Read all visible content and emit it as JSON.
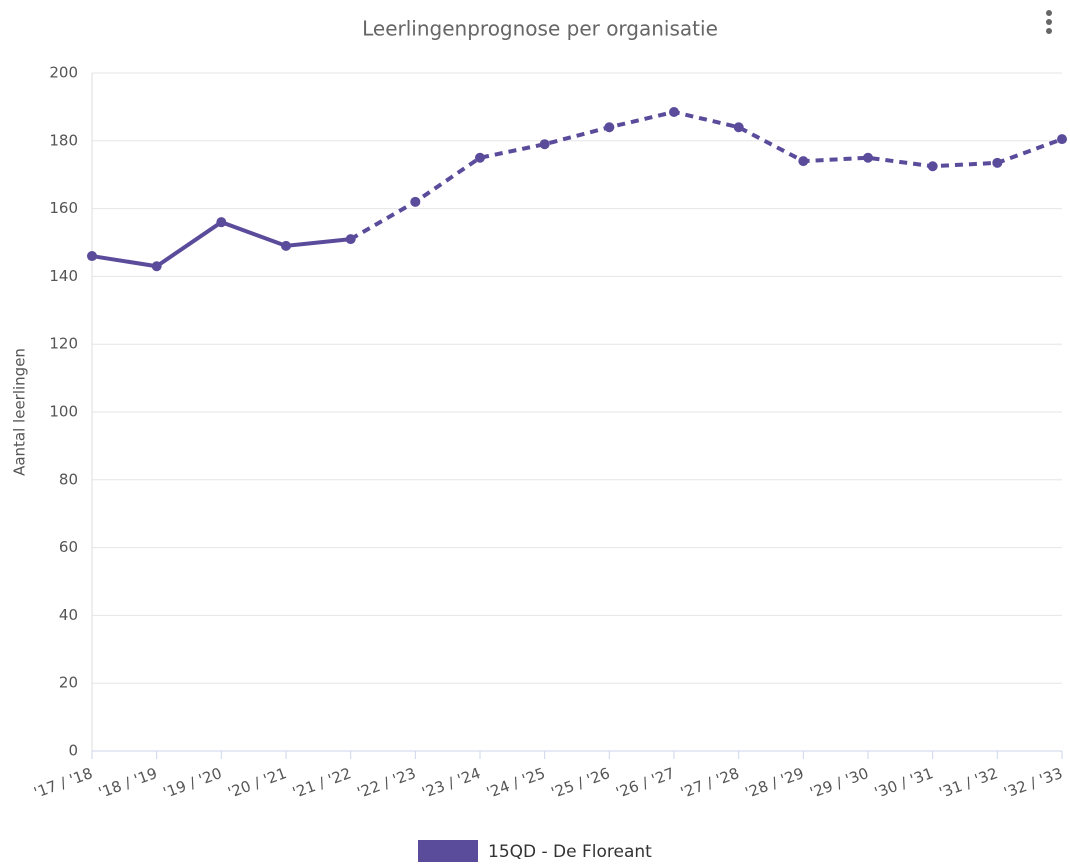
{
  "chart_data": {
    "type": "line",
    "title": "Leerlingenprognose per organisatie",
    "y_label": "Aantal leerlingen",
    "categories": [
      "'17 / '18",
      "'18 / '19",
      "'19 / '20",
      "'20 / '21",
      "'21 / '22",
      "'22 / '23",
      "'23 / '24",
      "'24 / '25",
      "'25 / '26",
      "'26 / '27",
      "'27 / '28",
      "'28 / '29",
      "'29 / '30",
      "'30 / '31",
      "'31 / '32",
      "'32 / '33"
    ],
    "series": [
      {
        "name": "15QD - De Floreant",
        "color": "#5b4b9b",
        "values": [
          146,
          143,
          156,
          149,
          151,
          162,
          175,
          179,
          184,
          188.5,
          184,
          174,
          175,
          172.5,
          173.5,
          180.5
        ]
      }
    ],
    "dashed_from": 4,
    "ylim": [
      0,
      200
    ],
    "yticks": [
      0,
      20,
      40,
      60,
      80,
      100,
      120,
      140,
      160,
      180,
      200
    ],
    "grid": true
  }
}
